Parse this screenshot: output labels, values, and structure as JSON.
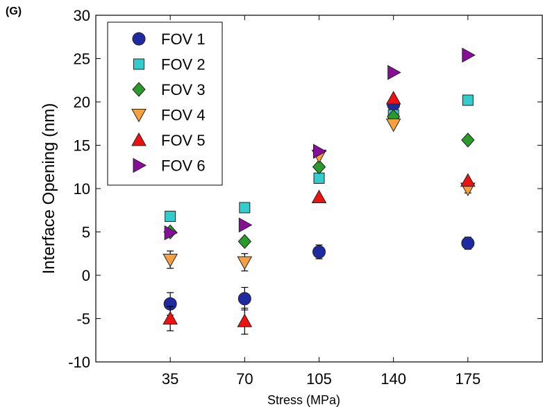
{
  "panel_label": "(G)",
  "chart_data": {
    "type": "scatter",
    "xlabel": "Stress  (MPa)",
    "ylabel": "Interface Opening  (nm)",
    "categories": [
      "35",
      "70",
      "105",
      "140",
      "175"
    ],
    "x": [
      35,
      70,
      105,
      140,
      175
    ],
    "xlim": [
      0,
      210
    ],
    "ylim": [
      -10,
      30
    ],
    "yticks": [
      -10,
      -5,
      0,
      5,
      10,
      15,
      20,
      25,
      30
    ],
    "grid": false,
    "legend_position": "top-left",
    "series": [
      {
        "name": "FOV 1",
        "marker": "circle",
        "color": "#1f2aa0",
        "values": [
          -3.3,
          -2.7,
          2.7,
          19.7,
          3.7
        ],
        "errors": [
          1.3,
          1.3,
          0.8,
          0,
          0.7
        ]
      },
      {
        "name": "FOV 2",
        "marker": "square",
        "color": "#33cccc",
        "values": [
          6.8,
          7.8,
          11.2,
          18.5,
          20.2
        ],
        "errors": [
          0,
          0,
          0,
          0,
          0
        ]
      },
      {
        "name": "FOV 3",
        "marker": "diamond",
        "color": "#2a9a2a",
        "values": [
          5.0,
          3.9,
          12.5,
          18.3,
          15.6
        ],
        "errors": [
          0,
          0,
          0,
          0,
          0
        ]
      },
      {
        "name": "FOV 4",
        "marker": "triangle-down",
        "color": "#f7a040",
        "values": [
          1.8,
          1.5,
          13.8,
          17.4,
          10.0
        ],
        "errors": [
          1.0,
          1.0,
          0,
          0,
          0.5
        ]
      },
      {
        "name": "FOV 5",
        "marker": "triangle-up",
        "color": "#ee1111",
        "values": [
          -5.0,
          -5.3,
          9.0,
          20.4,
          10.9
        ],
        "errors": [
          1.4,
          1.5,
          0,
          0,
          0
        ]
      },
      {
        "name": "FOV 6",
        "marker": "triangle-right",
        "color": "#880e9a",
        "values": [
          4.9,
          5.8,
          14.3,
          23.4,
          25.4
        ],
        "errors": [
          0,
          0,
          0,
          0,
          0
        ]
      }
    ]
  }
}
